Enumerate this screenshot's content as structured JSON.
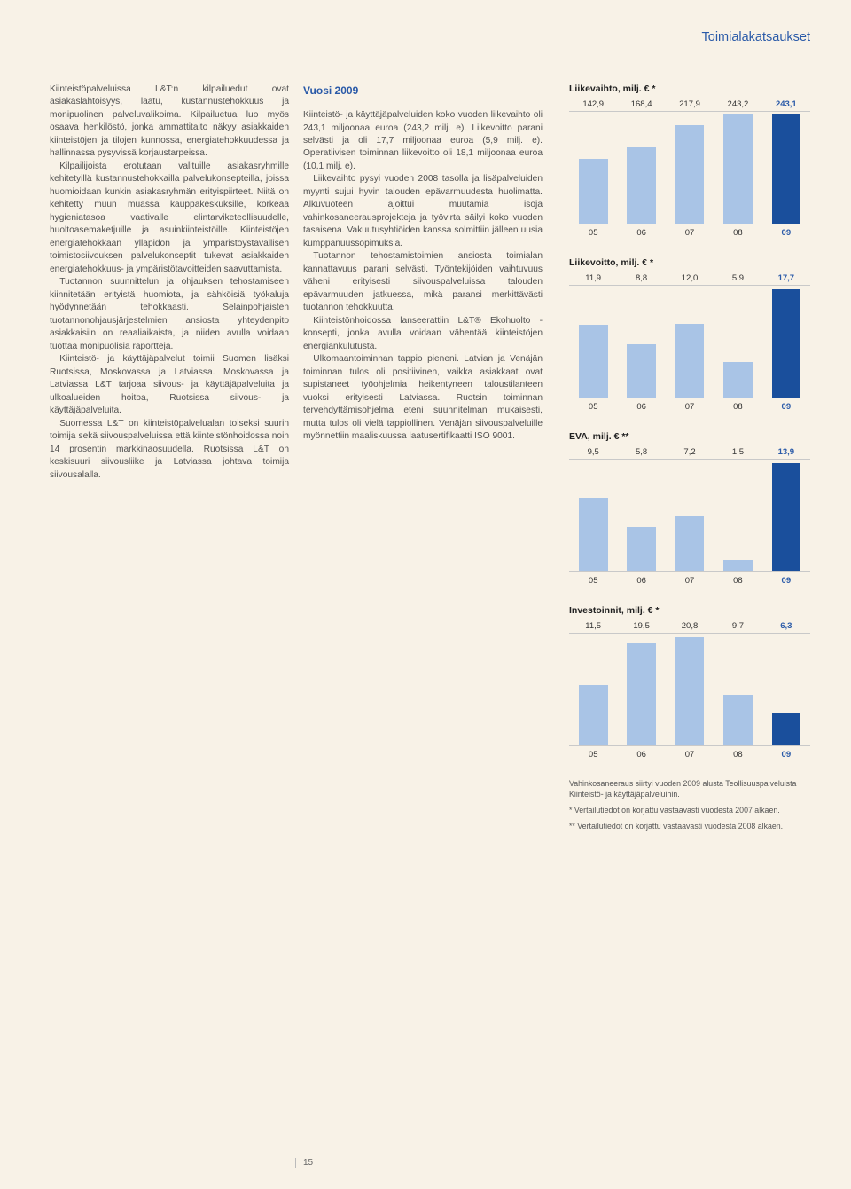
{
  "header": "Toimialakatsaukset",
  "col_left": {
    "p1": "Kiinteistöpalveluissa L&T:n kilpailuedut ovat asiakaslähtöisyys, laatu, kustannustehokkuus ja monipuolinen palveluvalikoima. Kilpailuetua luo myös osaava henkilöstö, jonka ammattitaito näkyy asiakkaiden kiinteistöjen ja tilojen kunnossa, energiatehokkuudessa ja hallinnassa pysyvissä korjaustarpeissa.",
    "p2": "Kilpailijoista erotutaan valituille asiakasryhmille kehitetyillä kustannustehokkailla palvelukonsepteilla, joissa huomioidaan kunkin asiakasryhmän erityispiirteet. Niitä on kehitetty muun muassa kauppakeskuksille, korkeaa hygieniatasoa vaativalle elintarviketeollisuudelle, huoltoasemaketjuille ja asuinkiinteistöille. Kiinteistöjen energiatehokkaan ylläpidon ja ympäristöystävällisen toimistosiivouksen palvelukonseptit tukevat asiakkaiden energiatehokkuus- ja ympäristötavoitteiden saavuttamista.",
    "p3": "Tuotannon suunnittelun ja ohjauksen tehostamiseen kiinnitetään erityistä huomiota, ja sähköisiä työkaluja hyödynnetään tehokkaasti. Selainpohjaisten tuotannonohjausjärjestelmien ansiosta yhteydenpito asiakkaisiin on reaaliaikaista, ja niiden avulla voidaan tuottaa monipuolisia raportteja.",
    "p4": "Kiinteistö- ja käyttäjäpalvelut toimii Suomen lisäksi Ruotsissa, Moskovassa ja Latviassa. Moskovassa ja Latviassa L&T tarjoaa siivous- ja käyttäjäpalveluita ja ulkoalueiden hoitoa, Ruotsissa siivous- ja käyttäjäpalveluita.",
    "p5": "Suomessa L&T on kiinteistöpalvelualan toiseksi suurin toimija sekä siivouspalveluissa että kiinteistönhoidossa noin 14 prosentin markkinaosuudella. Ruotsissa L&T on keskisuuri siivousliike ja Latviassa johtava toimija siivousalalla."
  },
  "col_mid": {
    "heading": "Vuosi 2009",
    "p1": "Kiinteistö- ja käyttäjäpalveluiden koko vuoden liikevaihto oli 243,1 miljoonaa euroa (243,2 milj. e). Liikevoitto parani selvästi ja oli 17,7 miljoonaa euroa (5,9 milj. e). Operatiivisen toiminnan liikevoitto oli 18,1 miljoonaa euroa (10,1 milj. e).",
    "p2": "Liikevaihto pysyi vuoden 2008 tasolla ja lisäpalveluiden myynti sujui hyvin talouden epävarmuudesta huolimatta. Alkuvuoteen ajoittui muutamia isoja vahinkosaneerausprojekteja ja työvirta säilyi koko vuoden tasaisena. Vakuutusyhtiöiden kanssa solmittiin jälleen uusia kumppanuussopimuksia.",
    "p3": "Tuotannon tehostamistoimien ansiosta toimialan kannattavuus parani selvästi. Työntekijöiden vaihtuvuus väheni erityisesti siivouspalveluissa talouden epävarmuuden jatkuessa, mikä paransi merkittävästi tuotannon tehokkuutta.",
    "p4": "Kiinteistönhoidossa lanseerattiin L&T® Ekohuolto -konsepti, jonka avulla voidaan vähentää kiinteistöjen energiankulutusta.",
    "p5": "Ulkomaantoiminnan tappio pieneni. Latvian ja Venäjän toiminnan tulos oli positiivinen, vaikka asiakkaat ovat supistaneet työohjelmia heikentyneen taloustilanteen vuoksi erityisesti Latviassa. Ruotsin toiminnan tervehdyttämisohjelma eteni suunnitelman mukaisesti, mutta tulos oli vielä tappiollinen. Venäjän siivouspalveluille myönnettiin maaliskuussa laatusertifikaatti ISO 9001."
  },
  "charts": [
    {
      "title": "Liikevaihto, milj. € *",
      "values": [
        "142,9",
        "168,4",
        "217,9",
        "243,2",
        "243,1"
      ],
      "heights_pct": [
        58,
        68,
        88,
        98,
        98
      ],
      "colors": [
        "#a9c4e6",
        "#a9c4e6",
        "#a9c4e6",
        "#a9c4e6",
        "#1a4f9c"
      ],
      "labels": [
        "05",
        "06",
        "07",
        "08",
        "09"
      ]
    },
    {
      "title": "Liikevoitto, milj. € *",
      "values": [
        "11,9",
        "8,8",
        "12,0",
        "5,9",
        "17,7"
      ],
      "heights_pct": [
        65,
        48,
        66,
        32,
        97
      ],
      "colors": [
        "#a9c4e6",
        "#a9c4e6",
        "#a9c4e6",
        "#a9c4e6",
        "#1a4f9c"
      ],
      "labels": [
        "05",
        "06",
        "07",
        "08",
        "09"
      ]
    },
    {
      "title": "EVA, milj. € **",
      "values": [
        "9,5",
        "5,8",
        "7,2",
        "1,5",
        "13,9"
      ],
      "heights_pct": [
        66,
        40,
        50,
        10,
        97
      ],
      "colors": [
        "#a9c4e6",
        "#a9c4e6",
        "#a9c4e6",
        "#a9c4e6",
        "#1a4f9c"
      ],
      "labels": [
        "05",
        "06",
        "07",
        "08",
        "09"
      ]
    },
    {
      "title": "Investoinnit, milj. € *",
      "values": [
        "11,5",
        "19,5",
        "20,8",
        "9,7",
        "6,3"
      ],
      "heights_pct": [
        54,
        91,
        97,
        45,
        29
      ],
      "colors": [
        "#a9c4e6",
        "#a9c4e6",
        "#a9c4e6",
        "#a9c4e6",
        "#1a4f9c"
      ],
      "labels": [
        "05",
        "06",
        "07",
        "08",
        "09"
      ]
    }
  ],
  "footnotes": {
    "f1": "Vahinkosaneeraus siirtyi vuoden 2009 alusta Teollisuuspalveluista Kiinteistö- ja käyttäjäpalveluihin.",
    "f2": "* Vertailutiedot on korjattu vastaavasti vuodesta 2007 alkaen.",
    "f3": "** Vertailutiedot on korjattu vastaavasti vuodesta 2008 alkaen."
  },
  "page_number": "15"
}
